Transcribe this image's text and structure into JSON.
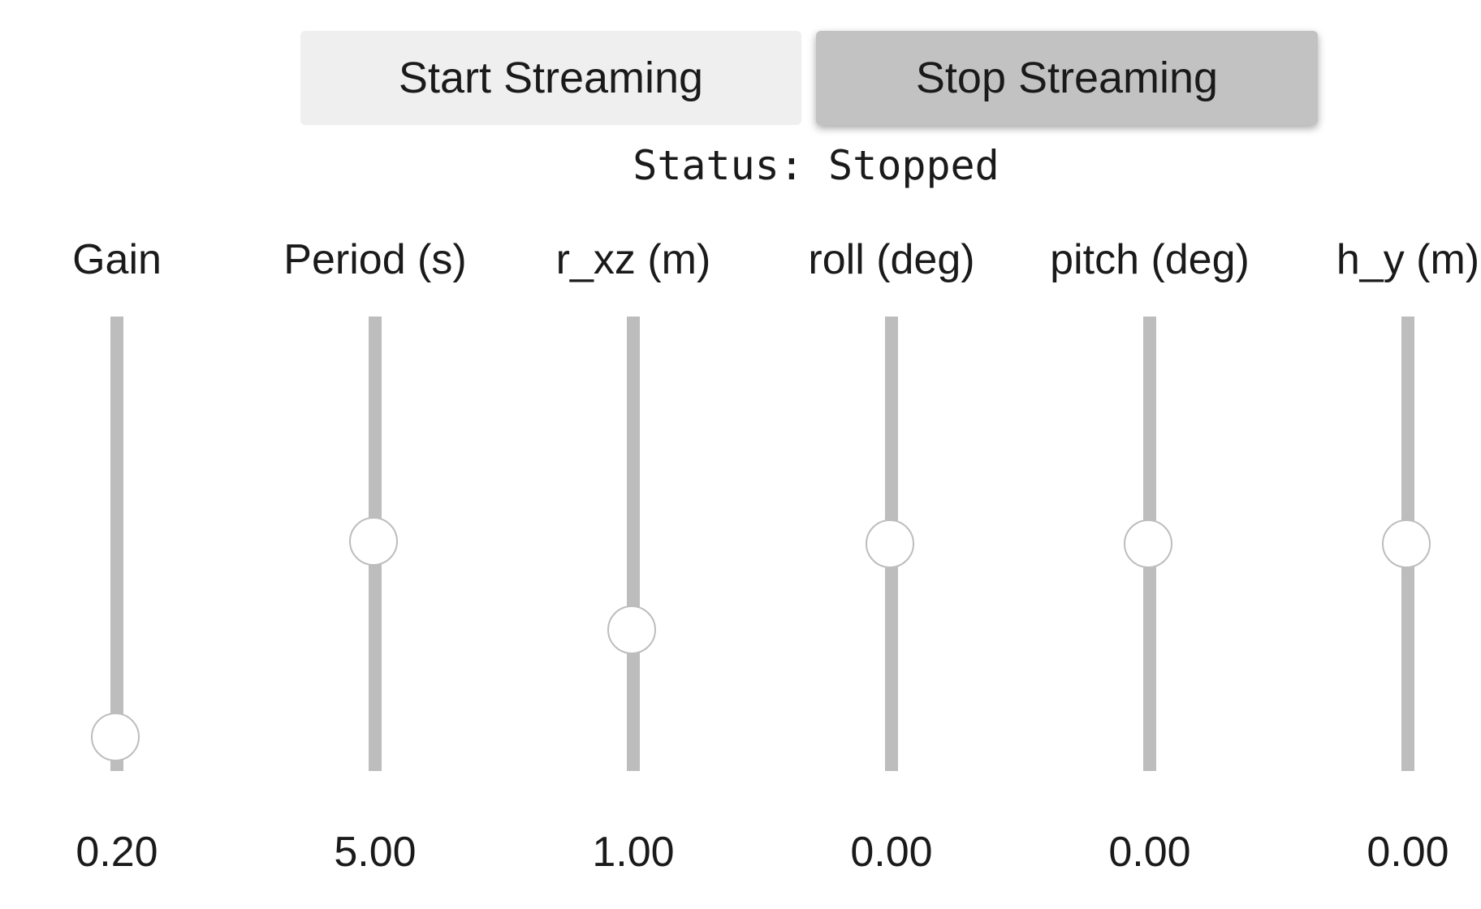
{
  "buttons": {
    "start_label": "Start Streaming",
    "stop_label": "Stop Streaming"
  },
  "status": {
    "text": "Status: Stopped"
  },
  "sliders": [
    {
      "id": "gain",
      "label": "Gain",
      "value_text": "0.20",
      "position_fraction": 0.075
    },
    {
      "id": "period",
      "label": "Period (s)",
      "value_text": "5.00",
      "position_fraction": 0.505
    },
    {
      "id": "r-xz",
      "label": "r_xz (m)",
      "value_text": "1.00",
      "position_fraction": 0.31
    },
    {
      "id": "roll",
      "label": "roll (deg)",
      "value_text": "0.00",
      "position_fraction": 0.5
    },
    {
      "id": "pitch",
      "label": "pitch (deg)",
      "value_text": "0.00",
      "position_fraction": 0.5
    },
    {
      "id": "h-y",
      "label": "h_y (m)",
      "value_text": "0.00",
      "position_fraction": 0.5
    }
  ],
  "colors": {
    "track": "#bdbdbd",
    "start_button_bg": "#efefef",
    "stop_button_bg": "#c2c2c2"
  }
}
